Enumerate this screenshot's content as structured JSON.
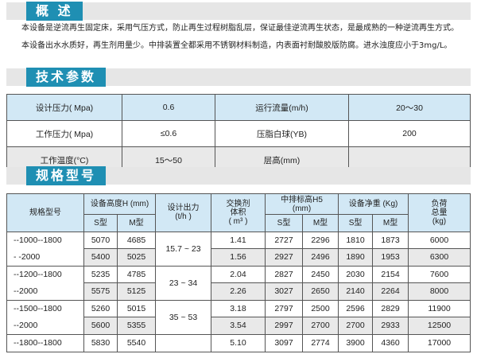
{
  "overview": {
    "title": "概 述",
    "lines": [
      "本设备是逆流再生固定床，采用气压方式，防止再生过程树脂乱层，保证最佳逆流再生状态，是最成熟的一种逆流再生方式。",
      "本设备出水水质好，再生剂用量少。中排装置全都采用不锈钢材料制造，内表面衬耐酸胶版防腐。进水浊度应小于3mg/L。"
    ]
  },
  "params": {
    "title": "技术参数",
    "rows": [
      [
        "设计压力( Mpa)",
        "0.6",
        "运行流量(m/h)",
        "20～30"
      ],
      [
        "工作压力( Mpa)",
        "≤0.6",
        "压脂白球(YB)",
        "200"
      ],
      [
        "工作温度(°C)",
        "15～50",
        "层高(mm)",
        ""
      ]
    ]
  },
  "spec": {
    "title": "规格型号",
    "headers": {
      "model": "规格型号",
      "height": "设备高度H (mm)",
      "output": "设计出力",
      "output_unit": "(t/h )",
      "volume": "交换剂",
      "volume2": "体积",
      "volume_unit": "( m³ )",
      "mid": "中排标高H5",
      "mid_unit": "(mm)",
      "weight": "设备净重 (Kg)",
      "load": "负荷",
      "load2": "总量",
      "load_unit": "(kg)",
      "s": "S型",
      "m": "M型"
    },
    "groups": [
      {
        "model": [
          "--1000--1800",
          "- -2000"
        ],
        "output": "15.7 ~ 23",
        "rows": [
          [
            "5070",
            "4685",
            "1.41",
            "2727",
            "2296",
            "1810",
            "1873",
            "6000"
          ],
          [
            "5400",
            "5025",
            "1.56",
            "2927",
            "2496",
            "1890",
            "1953",
            "6300"
          ]
        ]
      },
      {
        "model": [
          "--1200--1800",
          "--2000"
        ],
        "output": "23  ~ 34",
        "rows": [
          [
            "5235",
            "4785",
            "2.04",
            "2827",
            "2450",
            "2030",
            "2154",
            "7600"
          ],
          [
            "5575",
            "5125",
            "2.26",
            "3027",
            "2650",
            "2140",
            "2264",
            "8000"
          ]
        ]
      },
      {
        "model": [
          "--1500--1800",
          "--2000"
        ],
        "output": "35 ~ 53",
        "rows": [
          [
            "5260",
            "5015",
            "3.18",
            "2797",
            "2500",
            "2596",
            "2829",
            "11900"
          ],
          [
            "5600",
            "5355",
            "3.54",
            "2997",
            "2700",
            "2700",
            "2933",
            "12500"
          ]
        ]
      },
      {
        "model": [
          "--1800--1800",
          ""
        ],
        "output": "",
        "rows": [
          [
            "5830",
            "5540",
            "5.10",
            "3097",
            "2774",
            "3900",
            "4360",
            "17000"
          ]
        ]
      }
    ]
  }
}
